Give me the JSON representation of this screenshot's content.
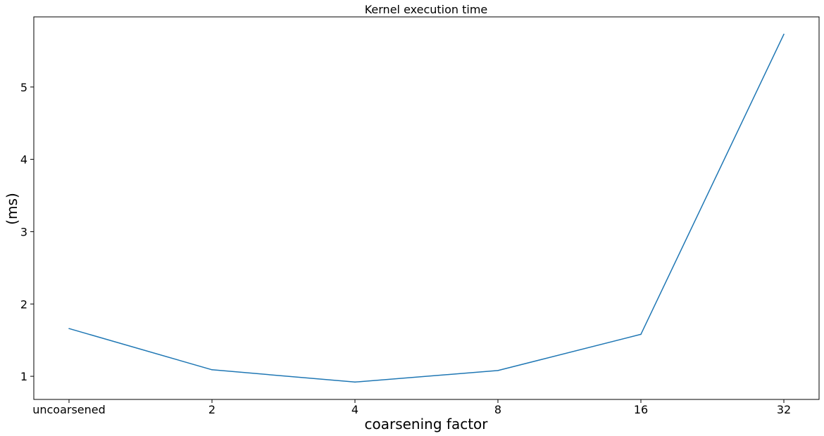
{
  "chart_data": {
    "type": "line",
    "title": "Kernel execution time",
    "xlabel": "coarsening factor",
    "ylabel": "(ms)",
    "categories": [
      "uncoarsened",
      "2",
      "4",
      "8",
      "16",
      "32"
    ],
    "series": [
      {
        "values": [
          1.66,
          1.09,
          0.92,
          1.08,
          1.58,
          5.73
        ],
        "color": "#1f77b4"
      }
    ],
    "ylim": [
      0.68,
      5.97
    ],
    "yticks": [
      1,
      2,
      3,
      4,
      5
    ],
    "grid": false,
    "legend": "none"
  }
}
